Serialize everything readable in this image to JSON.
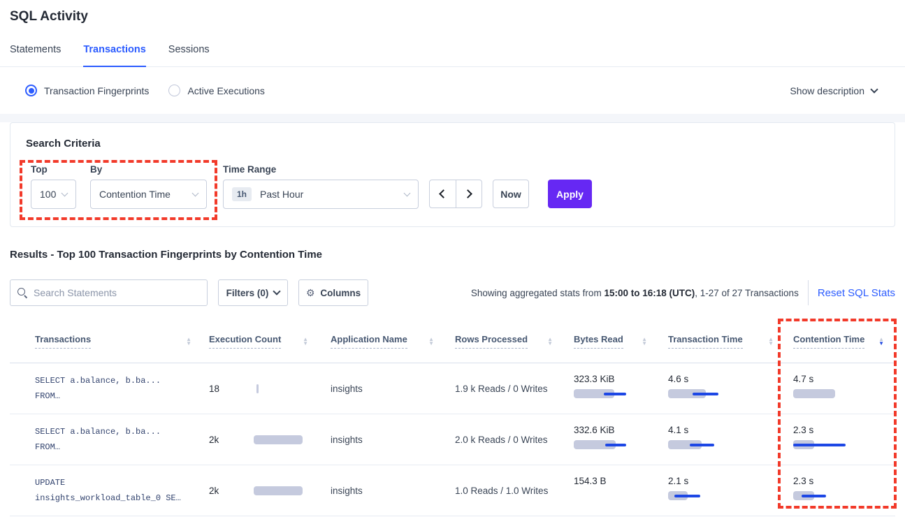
{
  "page": {
    "title": "SQL Activity"
  },
  "tabs": {
    "statements": "Statements",
    "transactions": "Transactions",
    "sessions": "Sessions",
    "active": "Transactions"
  },
  "view_toggle": {
    "fingerprints_label": "Transaction Fingerprints",
    "active_executions_label": "Active Executions",
    "selected": "Transaction Fingerprints",
    "show_description_label": "Show description"
  },
  "search_criteria": {
    "title": "Search Criteria",
    "top_label": "Top",
    "top_value": "100",
    "by_label": "By",
    "by_value": "Contention Time",
    "time_range_label": "Time Range",
    "time_badge": "1h",
    "time_value": "Past Hour",
    "now_label": "Now",
    "apply_label": "Apply"
  },
  "results": {
    "heading": "Results - Top 100 Transaction Fingerprints by Contention Time",
    "search_placeholder": "Search Statements",
    "filters_label": "Filters (0)",
    "columns_label": "Columns",
    "stats_prefix": "Showing aggregated stats from ",
    "stats_range": "15:00 to 16:18 (UTC)",
    "stats_suffix": ", 1-27 of 27 Transactions",
    "reset_label": "Reset SQL Stats"
  },
  "table": {
    "headers": [
      "Transactions",
      "Execution Count",
      "Application Name",
      "Rows Processed",
      "Bytes Read",
      "Transaction Time",
      "Contention Time"
    ],
    "sort": {
      "column": "Contention Time",
      "direction": "desc"
    },
    "rows": [
      {
        "query_line1": "SELECT a.balance, b.ba...",
        "query_line2": "FROM…",
        "execution_count": "18",
        "execution_bar": {
          "bar": [
            4,
            7
          ]
        },
        "application_name": "insights",
        "rows_processed": "1.9 k Reads / 0 Writes",
        "bytes_read": "323.3 KiB",
        "bytes_read_bar": {
          "bar": [
            0,
            58
          ],
          "line": [
            43,
            75
          ]
        },
        "transaction_time": "4.6 s",
        "transaction_time_bar": {
          "bar": [
            0,
            54
          ],
          "line": [
            35,
            72
          ]
        },
        "contention_time": "4.7 s",
        "contention_time_bar": {
          "bar": [
            0,
            60
          ]
        }
      },
      {
        "query_line1": "SELECT a.balance, b.ba...",
        "query_line2": "FROM…",
        "execution_count": "2k",
        "execution_bar": {
          "bar": [
            0,
            70
          ]
        },
        "application_name": "insights",
        "rows_processed": "2.0 k Reads / 0 Writes",
        "bytes_read": "332.6 KiB",
        "bytes_read_bar": {
          "bar": [
            0,
            60
          ],
          "line": [
            45,
            75
          ]
        },
        "transaction_time": "4.1 s",
        "transaction_time_bar": {
          "bar": [
            0,
            48
          ],
          "line": [
            31,
            66
          ]
        },
        "contention_time": "2.3 s",
        "contention_time_bar": {
          "bar": [
            0,
            30
          ],
          "line": [
            0,
            75
          ]
        }
      },
      {
        "query_line1": "UPDATE",
        "query_line2": "insights_workload_table_0 SE…",
        "execution_count": "2k",
        "execution_bar": {
          "bar": [
            0,
            70
          ]
        },
        "application_name": "insights",
        "rows_processed": "1.0 Reads / 1.0 Writes",
        "bytes_read": "154.3 B",
        "bytes_read_bar": null,
        "transaction_time": "2.1 s",
        "transaction_time_bar": {
          "bar": [
            0,
            28
          ],
          "line": [
            9,
            46
          ]
        },
        "contention_time": "2.3 s",
        "contention_time_bar": {
          "bar": [
            0,
            30
          ],
          "line": [
            12,
            47
          ]
        }
      }
    ]
  },
  "colors": {
    "accent_blue": "#2c5cff",
    "apply_purple": "#6628f3",
    "annotation_red": "#f23a2a",
    "bar_gray": "#c5cade",
    "bar_line_blue": "#1d47e5"
  }
}
